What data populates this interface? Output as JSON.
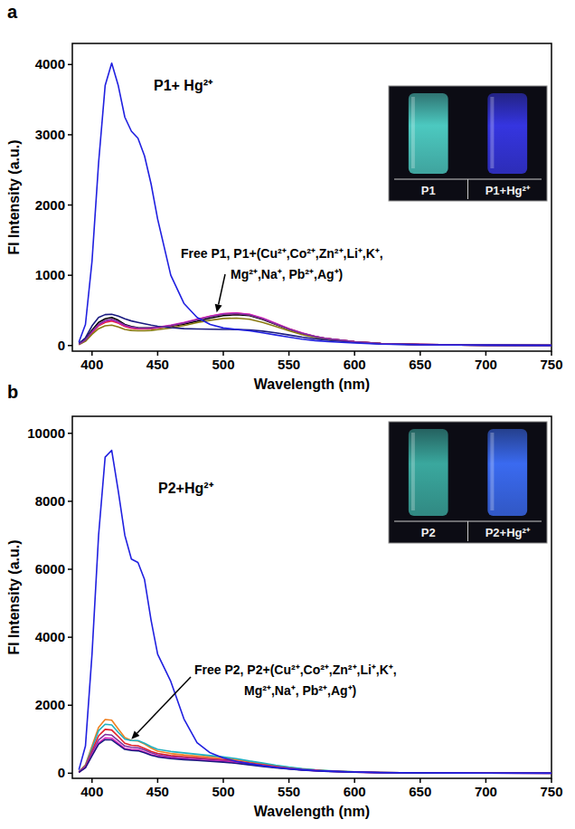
{
  "chart_data": [
    {
      "type": "line",
      "panel_label": "a",
      "x_label": "Wavelength (nm)",
      "y_label": "FI Intensity (a.u.)",
      "xlim": [
        385,
        750
      ],
      "xticks": [
        400,
        450,
        500,
        550,
        600,
        650,
        700,
        750
      ],
      "ylim": [
        -80,
        4300
      ],
      "yticks": [
        0,
        1000,
        2000,
        3000,
        4000
      ],
      "annotations": [
        "P1+ Hg²⁺",
        "Free P1, P1+(Cu²⁺,Co²⁺,Zn²⁺,Li⁺,K⁺,",
        "Mg²⁺,Na⁺, Pb²⁺,Ag⁺)"
      ],
      "inset": {
        "labels": [
          "P1",
          "P1+Hg²⁺"
        ]
      },
      "x": [
        390,
        395,
        400,
        405,
        410,
        415,
        420,
        425,
        430,
        435,
        440,
        445,
        450,
        460,
        470,
        480,
        490,
        500,
        510,
        520,
        530,
        540,
        550,
        560,
        570,
        580,
        600,
        620,
        650,
        700,
        750
      ],
      "series": [
        {
          "color": "#000000",
          "values": [
            20,
            90,
            220,
            330,
            380,
            400,
            360,
            300,
            270,
            255,
            250,
            250,
            255,
            275,
            305,
            345,
            390,
            425,
            440,
            425,
            370,
            300,
            230,
            170,
            125,
            95,
            55,
            30,
            15,
            5,
            2
          ]
        },
        {
          "color": "#e0202a",
          "values": [
            15,
            70,
            180,
            280,
            330,
            350,
            320,
            270,
            245,
            235,
            235,
            240,
            250,
            280,
            320,
            370,
            415,
            450,
            460,
            440,
            385,
            310,
            240,
            175,
            130,
            95,
            55,
            30,
            15,
            5,
            2
          ]
        },
        {
          "color": "#e020c0",
          "values": [
            15,
            75,
            190,
            290,
            345,
            365,
            330,
            280,
            255,
            245,
            245,
            250,
            260,
            290,
            330,
            375,
            420,
            455,
            465,
            445,
            390,
            315,
            240,
            180,
            130,
            95,
            55,
            30,
            15,
            5,
            2
          ]
        },
        {
          "color": "#8a7a10",
          "values": [
            12,
            60,
            160,
            240,
            280,
            290,
            265,
            230,
            215,
            210,
            210,
            215,
            225,
            250,
            285,
            325,
            360,
            385,
            390,
            375,
            330,
            270,
            210,
            155,
            115,
            85,
            50,
            28,
            14,
            5,
            2
          ]
        },
        {
          "color": "#1a1a80",
          "values": [
            30,
            110,
            280,
            400,
            440,
            445,
            420,
            380,
            350,
            330,
            310,
            290,
            275,
            255,
            240,
            235,
            232,
            230,
            228,
            222,
            205,
            180,
            150,
            120,
            95,
            75,
            45,
            25,
            12,
            5,
            2
          ]
        },
        {
          "color": "#8030a0",
          "values": [
            18,
            80,
            200,
            300,
            355,
            375,
            340,
            290,
            265,
            250,
            248,
            250,
            258,
            285,
            320,
            365,
            410,
            445,
            455,
            435,
            380,
            305,
            235,
            175,
            128,
            95,
            55,
            30,
            15,
            5,
            2
          ]
        },
        {
          "color": "#2020e0",
          "values": [
            50,
            300,
            1200,
            2600,
            3700,
            4020,
            3700,
            3250,
            3050,
            2950,
            2700,
            2300,
            1800,
            1000,
            600,
            400,
            300,
            250,
            230,
            210,
            180,
            150,
            120,
            90,
            70,
            55,
            35,
            20,
            10,
            5,
            2
          ]
        }
      ]
    },
    {
      "type": "line",
      "panel_label": "b",
      "x_label": "Wavelength (nm)",
      "y_label": "FI Intensity (a.u.)",
      "xlim": [
        385,
        750
      ],
      "xticks": [
        400,
        450,
        500,
        550,
        600,
        650,
        700,
        750
      ],
      "ylim": [
        -150,
        10500
      ],
      "yticks": [
        0,
        2000,
        4000,
        6000,
        8000,
        10000
      ],
      "annotations": [
        "P2+Hg²⁺",
        "Free P2, P2+(Cu²⁺,Co²⁺,Zn²⁺,Li⁺,K⁺,",
        "Mg²⁺,Na⁺, Pb²⁺,Ag⁺)"
      ],
      "inset": {
        "labels": [
          "P2",
          "P2+Hg²⁺"
        ]
      },
      "x": [
        390,
        395,
        400,
        405,
        410,
        415,
        420,
        425,
        430,
        435,
        440,
        445,
        450,
        460,
        470,
        480,
        490,
        500,
        510,
        520,
        530,
        540,
        550,
        560,
        570,
        580,
        600,
        620,
        650,
        700,
        750
      ],
      "series": [
        {
          "color": "#f08020",
          "values": [
            40,
            250,
            800,
            1350,
            1580,
            1560,
            1300,
            1050,
            960,
            950,
            860,
            740,
            650,
            580,
            540,
            510,
            480,
            450,
            400,
            340,
            280,
            220,
            170,
            125,
            95,
            70,
            40,
            22,
            10,
            4,
            2
          ]
        },
        {
          "color": "#20b0c0",
          "values": [
            40,
            230,
            740,
            1250,
            1440,
            1420,
            1200,
            1000,
            960,
            960,
            880,
            780,
            700,
            640,
            600,
            560,
            520,
            480,
            430,
            360,
            300,
            235,
            180,
            135,
            100,
            75,
            42,
            22,
            10,
            4,
            2
          ]
        },
        {
          "color": "#e0202a",
          "values": [
            35,
            210,
            660,
            1100,
            1290,
            1270,
            1080,
            880,
            820,
            810,
            730,
            640,
            580,
            520,
            490,
            460,
            430,
            400,
            355,
            300,
            245,
            195,
            150,
            110,
            85,
            62,
            35,
            20,
            9,
            4,
            2
          ]
        },
        {
          "color": "#8030a0",
          "values": [
            30,
            190,
            600,
            980,
            1140,
            1120,
            960,
            800,
            760,
            750,
            680,
            600,
            540,
            480,
            450,
            420,
            395,
            370,
            330,
            280,
            230,
            180,
            140,
            105,
            80,
            58,
            33,
            18,
            8,
            3,
            1
          ]
        },
        {
          "color": "#e020c0",
          "values": [
            30,
            170,
            540,
            890,
            1040,
            1030,
            880,
            730,
            700,
            690,
            620,
            550,
            500,
            450,
            420,
            395,
            370,
            345,
            310,
            260,
            215,
            170,
            130,
            98,
            74,
            55,
            31,
            17,
            8,
            3,
            1
          ]
        },
        {
          "color": "#1a1a80",
          "values": [
            28,
            160,
            510,
            850,
            990,
            980,
            840,
            700,
            670,
            660,
            600,
            530,
            480,
            430,
            400,
            375,
            350,
            325,
            290,
            245,
            200,
            160,
            122,
            92,
            70,
            52,
            29,
            16,
            7,
            3,
            1
          ]
        },
        {
          "color": "#2020e0",
          "values": [
            100,
            800,
            3500,
            7000,
            9300,
            9500,
            8300,
            7000,
            6300,
            6200,
            5700,
            4500,
            3500,
            2700,
            1600,
            900,
            600,
            450,
            350,
            280,
            220,
            170,
            130,
            100,
            75,
            60,
            35,
            20,
            10,
            5,
            2
          ]
        }
      ]
    }
  ]
}
